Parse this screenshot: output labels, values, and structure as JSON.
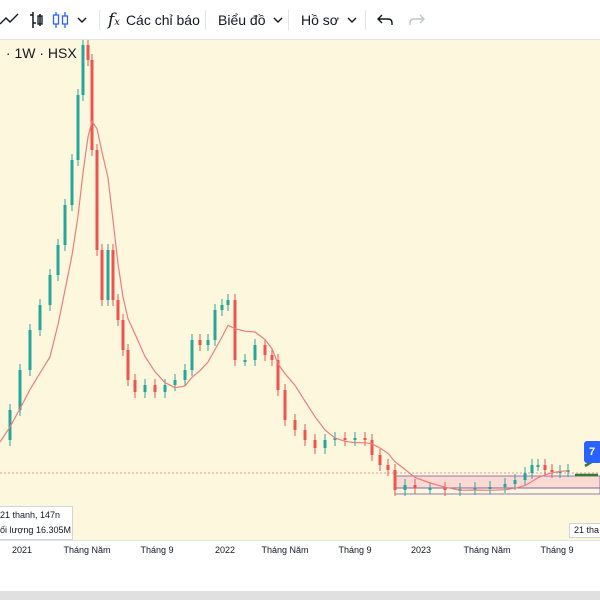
{
  "toolbar": {
    "indicators_label": "Các chỉ báo",
    "chart_label": "Biểu đồ",
    "profile_label": "Hồ sơ"
  },
  "symbol_legend": " · 1W · HSX",
  "tooltip": {
    "line1": "21 thanh, 147n",
    "line2": "ối lượng 16.305M"
  },
  "tooltip_right": "21 tha",
  "flag_label": "7",
  "x_axis_labels": [
    "2021",
    "Tháng Năm",
    "Tháng 9",
    "2022",
    "Tháng Năm",
    "Tháng 9",
    "2023",
    "Tháng Năm",
    "Tháng 9"
  ],
  "colors": {
    "up": "#26a69a",
    "down": "#ef5350",
    "ma_line": "#f07b7b",
    "chart_bg": "#fdf8dd",
    "accent": "#2962ff"
  },
  "chart_data": {
    "type": "candlestick",
    "interval": "1W",
    "exchange": "HSX",
    "overlay": "moving-average",
    "grid": false
  }
}
